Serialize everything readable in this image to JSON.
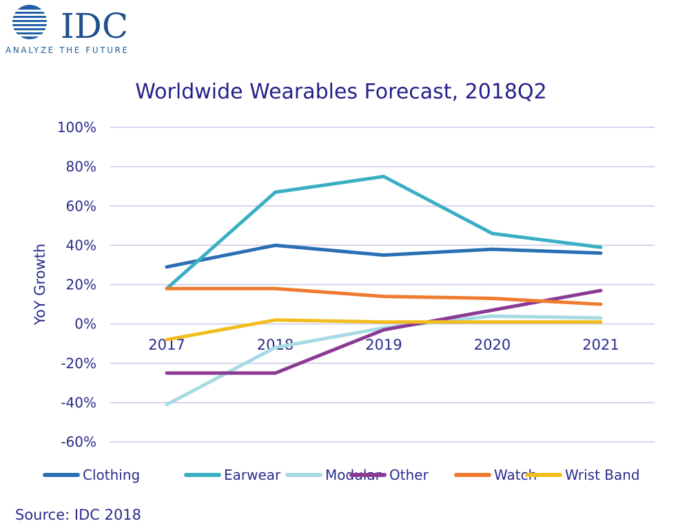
{
  "logo": {
    "wordmark": "IDC",
    "tagline": "ANALYZE THE FUTURE",
    "colors": {
      "mark": "#1f5fa8",
      "wordmark": "#1e4f8f",
      "tagline": "#1e5d9a"
    }
  },
  "source": "Source: IDC 2018",
  "chart_data": {
    "type": "line",
    "title": "Worldwide Wearables Forecast, 2018Q2",
    "xlabel": "",
    "ylabel": "YoY Growth",
    "ylim": [
      -0.6,
      1.0
    ],
    "y_ticks": [
      1.0,
      0.8,
      0.6,
      0.4,
      0.2,
      0.0,
      -0.2,
      -0.4,
      -0.6
    ],
    "y_tick_labels": [
      "100%",
      "80%",
      "60%",
      "40%",
      "20%",
      "0%",
      "-20%",
      "-40%",
      "-60%"
    ],
    "categories": [
      "2017",
      "2018",
      "2019",
      "2020",
      "2021"
    ],
    "grid": true,
    "legend_position": "bottom",
    "series": [
      {
        "name": "Clothing",
        "color": "#2a6fb3",
        "values": [
          0.29,
          0.4,
          0.35,
          0.38,
          0.36
        ]
      },
      {
        "name": "Earwear",
        "color": "#3aafc4",
        "values": [
          0.18,
          0.67,
          0.75,
          0.46,
          0.39
        ]
      },
      {
        "name": "Modular",
        "color": "#a6dbe3",
        "values": [
          -0.41,
          -0.12,
          -0.02,
          0.04,
          0.03
        ]
      },
      {
        "name": "Other",
        "color": "#8b3a94",
        "values": [
          -0.25,
          -0.25,
          -0.03,
          0.07,
          0.17
        ]
      },
      {
        "name": "Watch",
        "color": "#ef7b2f",
        "values": [
          0.18,
          0.18,
          0.14,
          0.13,
          0.1
        ]
      },
      {
        "name": "Wrist Band",
        "color": "#f2be1f",
        "values": [
          -0.08,
          0.02,
          0.01,
          0.01,
          0.01
        ]
      }
    ]
  }
}
